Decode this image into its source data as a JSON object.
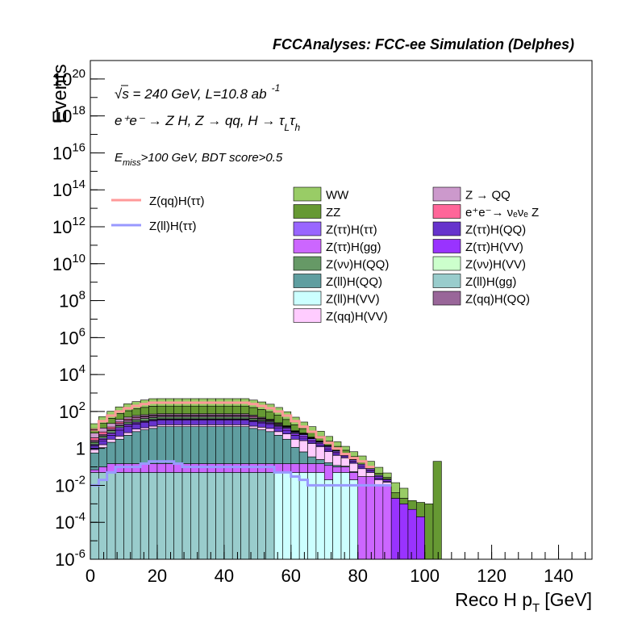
{
  "chart_data": {
    "type": "bar",
    "title": "FCCAnalyses: FCC-ee Simulation (Delphes)",
    "xlabel": "Reco H p",
    "xlabel_sub": "T",
    "xlabel_unit": "[GeV]",
    "ylabel": "Events",
    "xlim": [
      0,
      150
    ],
    "ylim": [
      1e-06,
      1e+21
    ],
    "yscale": "log",
    "x_ticks": [
      "0",
      "20",
      "40",
      "60",
      "80",
      "100",
      "120",
      "140"
    ],
    "y_ticks": [
      {
        "base": "10",
        "exp": "-6"
      },
      {
        "base": "10",
        "exp": "-4"
      },
      {
        "base": "10",
        "exp": "-2"
      },
      {
        "base": "1",
        "exp": ""
      },
      {
        "base": "10",
        "exp": "2"
      },
      {
        "base": "10",
        "exp": "4"
      },
      {
        "base": "10",
        "exp": "6"
      },
      {
        "base": "10",
        "exp": "8"
      },
      {
        "base": "10",
        "exp": "10"
      },
      {
        "base": "10",
        "exp": "12"
      },
      {
        "base": "10",
        "exp": "14"
      },
      {
        "base": "10",
        "exp": "16"
      },
      {
        "base": "10",
        "exp": "18"
      },
      {
        "base": "10",
        "exp": "20"
      }
    ],
    "annotations": {
      "sqrt_s": "√s = 240 GeV, L=10.8 ab",
      "sqrt_s_exp": "-1",
      "process": "e⁺e⁻ → Z H, Z → qq, H → τ",
      "process_sub1": "L",
      "process_tau": "τ",
      "process_sub2": "h",
      "cut": "E",
      "cut_sub": "miss",
      "cut_rest": ">100 GeV, BDT score>0.5"
    },
    "stack_order": [
      "Z(ll)H(gg)",
      "Z(ll)H(VV)",
      "Z(ττ)H(gg)",
      "Z(ll)H(QQ)",
      "Z(qq)H(VV)",
      "Z(ττ)H(QQ)",
      "Z(ττ)H(VV)",
      "Z(ττ)H(ττ)",
      "Z(νν)H(QQ)",
      "Z(νν)H(VV)",
      "Z(qq)H(QQ)",
      "e⁺e⁻→ νₑνₑ Z",
      "Z → QQ",
      "ZZ",
      "WW"
    ],
    "stack_series": [
      {
        "name": "Z(ll)H(gg)",
        "color": "#99cccc",
        "start": 0,
        "end": 55,
        "values": [
          0.05,
          0.05,
          0.05,
          0.05,
          0.05,
          0.05,
          0.05,
          0.05,
          0.05,
          0.05,
          0.05,
          0.05,
          0.05,
          0.05,
          0.05,
          0.05,
          0.05,
          0.05,
          0.05,
          0.05,
          0.05,
          0.05
        ]
      },
      {
        "name": "Z(ll)H(VV)",
        "color": "#ccffff",
        "start": 55,
        "end": 80,
        "values": [
          0.05,
          0.05,
          0.05,
          0.05,
          0.05,
          0.05,
          0.02,
          0.05,
          0.05,
          0.02
        ]
      },
      {
        "name": "Z(ττ)H(gg)",
        "color": "#cc66ff",
        "start": 0,
        "end": 90,
        "values": [
          0.02,
          0.05,
          0.1,
          0.1,
          0.1,
          0.1,
          0.1,
          0.1,
          0.1,
          0.1,
          0.1,
          0.1,
          0.1,
          0.1,
          0.1,
          0.1,
          0.1,
          0.1,
          0.1,
          0.1,
          0.1,
          0.1,
          0.1,
          0.1,
          0.1,
          0.1,
          0.1,
          0.1,
          0.1,
          0.05,
          0.05,
          0.03,
          0.03,
          0.03,
          0.01,
          0.01
        ]
      },
      {
        "name": "Z(ll)H(QQ)",
        "color": "#5f9ea0",
        "start": 0,
        "end": 80,
        "values": [
          0.5,
          1,
          2,
          3,
          5,
          8,
          10,
          12,
          15,
          15,
          15,
          15,
          15,
          15,
          15,
          15,
          15,
          15,
          15,
          12,
          10,
          8,
          5,
          3,
          1,
          0.5,
          0.2,
          0.1,
          0.05,
          0.02,
          0.01,
          0.005
        ]
      },
      {
        "name": "Z(qq)H(VV)",
        "color": "#ffccff",
        "start": 0,
        "end": 90,
        "values": [
          0.3,
          0.5,
          1,
          1.5,
          2,
          3,
          3,
          4,
          4,
          4,
          4,
          4,
          4,
          4,
          4,
          4,
          4,
          4,
          4,
          4,
          4,
          4,
          3,
          3,
          2,
          2,
          1.5,
          1,
          0.5,
          0.3,
          0.2,
          0.1,
          0.05,
          0.02,
          0.01,
          0.005
        ]
      },
      {
        "name": "Z(ττ)H(QQ)",
        "color": "#6633cc",
        "start": 0,
        "end": 90,
        "values": [
          0.5,
          1,
          2,
          5,
          8,
          10,
          12,
          15,
          15,
          15,
          15,
          15,
          15,
          15,
          15,
          15,
          15,
          15,
          15,
          12,
          10,
          8,
          5,
          3,
          2,
          1,
          0.5,
          0.3,
          0.2,
          0.1,
          0.05,
          0.03,
          0.02,
          0.01,
          0.005,
          0.002
        ]
      },
      {
        "name": "Z(ττ)H(VV)",
        "color": "#9933ff",
        "start": 0,
        "end": 100,
        "values": [
          0.1,
          0.5,
          1,
          2,
          3,
          3,
          3,
          3,
          3,
          3,
          3,
          3,
          3,
          3,
          3,
          3,
          3,
          3,
          3,
          3,
          3,
          3,
          2,
          2,
          1,
          1,
          0.5,
          0.3,
          0.2,
          0.1,
          0.05,
          0.03,
          0.02,
          0.01,
          0.005,
          0.003,
          0.002,
          0.001,
          0.0005,
          0.0002
        ]
      },
      {
        "name": "Z(ττ)H(ττ)",
        "color": "#9966ff",
        "start": 0,
        "end": 90,
        "values": [
          0.2,
          0.5,
          1,
          2,
          3,
          3,
          3,
          3,
          3,
          3,
          3,
          3,
          3,
          3,
          3,
          3,
          3,
          3,
          3,
          3,
          3,
          3,
          2,
          2,
          1,
          1,
          0.5,
          0.3,
          0.2,
          0.1,
          0.05,
          0.03,
          0.02,
          0.01,
          0.005,
          0.002
        ]
      },
      {
        "name": "Z(νν)H(QQ)",
        "color": "#669966",
        "start": 0,
        "end": 80,
        "values": [
          0.5,
          1,
          2,
          3,
          5,
          8,
          10,
          10,
          10,
          10,
          10,
          10,
          10,
          10,
          10,
          10,
          10,
          10,
          10,
          8,
          5,
          3,
          2,
          1,
          0.5,
          0.3,
          0.2,
          0.1,
          0.05,
          0.02,
          0.01,
          0.005
        ]
      },
      {
        "name": "Z(νν)H(VV)",
        "color": "#ccffcc",
        "start": 0,
        "end": 80,
        "values": [
          0.1,
          0.2,
          0.3,
          0.5,
          0.5,
          0.5,
          0.5,
          0.5,
          0.5,
          0.5,
          0.5,
          0.5,
          0.5,
          0.5,
          0.5,
          0.5,
          0.5,
          0.5,
          0.5,
          0.5,
          0.5,
          0.5,
          0.3,
          0.2,
          0.1,
          0.05,
          0.03,
          0.02,
          0.01,
          0.005,
          0.002,
          0.001
        ]
      },
      {
        "name": "Z(qq)H(QQ)",
        "color": "#996699",
        "start": 0,
        "end": 80,
        "values": [
          0.5,
          1,
          2,
          5,
          8,
          10,
          10,
          10,
          10,
          10,
          10,
          10,
          10,
          10,
          10,
          10,
          10,
          10,
          10,
          8,
          5,
          3,
          2,
          1,
          0.5,
          0.3,
          0.2,
          0.1,
          0.05,
          0.02,
          0.01,
          0.005
        ]
      },
      {
        "name": "e⁺e⁻→ νₑνₑ Z",
        "color": "#ff6699",
        "start": 0,
        "end": 80,
        "values": [
          1,
          2,
          3,
          5,
          5,
          5,
          5,
          5,
          5,
          5,
          5,
          5,
          5,
          5,
          5,
          5,
          5,
          5,
          5,
          5,
          3,
          2,
          1,
          0.5,
          0.3,
          0.2,
          0.1,
          0.05,
          0.02,
          0.01,
          0.005,
          0.002
        ]
      },
      {
        "name": "Z → QQ",
        "color": "#cc99cc",
        "start": 0,
        "end": 80,
        "values": [
          3,
          5,
          8,
          10,
          10,
          10,
          10,
          10,
          10,
          10,
          10,
          10,
          10,
          10,
          10,
          10,
          10,
          10,
          10,
          8,
          5,
          3,
          2,
          1,
          0.5,
          0.3,
          0.2,
          0.1,
          0.05,
          0.02,
          0.01,
          0.005
        ]
      },
      {
        "name": "ZZ",
        "color": "#669933",
        "start": 0,
        "end": 105,
        "values": [
          5,
          10,
          20,
          40,
          60,
          80,
          100,
          120,
          120,
          120,
          120,
          120,
          120,
          120,
          120,
          120,
          120,
          120,
          120,
          100,
          80,
          60,
          40,
          20,
          10,
          5,
          3,
          2,
          1,
          0.5,
          0.3,
          0.1,
          0.05,
          0.02,
          0.01,
          0.005,
          0.002,
          0.001,
          0.001,
          0.001,
          0.001,
          0.2
        ]
      },
      {
        "name": "WW",
        "color": "#99cc66",
        "start": 0,
        "end": 95,
        "values": [
          10,
          30,
          60,
          100,
          150,
          200,
          250,
          300,
          300,
          300,
          300,
          300,
          300,
          300,
          300,
          300,
          300,
          300,
          300,
          250,
          200,
          150,
          100,
          60,
          30,
          15,
          8,
          4,
          2,
          1,
          0.5,
          0.3,
          0.2,
          0.1,
          0.05,
          0.02,
          0.01,
          0.005
        ]
      }
    ],
    "line_series": [
      {
        "name": "Z(qq)H(ττ)",
        "color": "#ff9999",
        "values": [
          10,
          30,
          60,
          100,
          150,
          200,
          250,
          300,
          300,
          300,
          300,
          300,
          300,
          300,
          300,
          300,
          300,
          300,
          300,
          250,
          200,
          150,
          100,
          60,
          30,
          15,
          8,
          4,
          2,
          1,
          0.5,
          0.3,
          0.2,
          0.1
        ]
      },
      {
        "name": "Z(ll)H(ττ)",
        "color": "#9999ff",
        "values": [
          0.01,
          0.02,
          0.05,
          0.1,
          0.1,
          0.1,
          0.15,
          0.2,
          0.2,
          0.2,
          0.15,
          0.1,
          0.1,
          0.1,
          0.1,
          0.1,
          0.1,
          0.1,
          0.1,
          0.1,
          0.1,
          0.1,
          0.05,
          0.05,
          0.03,
          0.02,
          0.01,
          0.01,
          0.01,
          0.01,
          0.01,
          0.01,
          0.01,
          0.01,
          0.01,
          0.01
        ]
      }
    ],
    "legend_lines": [
      {
        "label": "Z(qq)H(ττ)",
        "color": "#ff9999"
      },
      {
        "label": "Z(ll)H(ττ)",
        "color": "#9999ff"
      }
    ],
    "legend_col1": [
      {
        "label": "WW",
        "color": "#99cc66"
      },
      {
        "label": "ZZ",
        "color": "#669933"
      },
      {
        "label": "Z(ττ)H(ττ)",
        "color": "#9966ff"
      },
      {
        "label": "Z(ττ)H(gg)",
        "color": "#cc66ff"
      },
      {
        "label": "Z(νν)H(QQ)",
        "color": "#669966"
      },
      {
        "label": "Z(ll)H(QQ)",
        "color": "#5f9ea0"
      },
      {
        "label": "Z(ll)H(VV)",
        "color": "#ccffff"
      },
      {
        "label": "Z(qq)H(VV)",
        "color": "#ffccff"
      }
    ],
    "legend_col2": [
      {
        "label": "Z → QQ",
        "color": "#cc99cc"
      },
      {
        "label": "e⁺e⁻→ νₑνₑ Z",
        "color": "#ff6699"
      },
      {
        "label": "Z(ττ)H(QQ)",
        "color": "#6633cc"
      },
      {
        "label": "Z(ττ)H(VV)",
        "color": "#9933ff"
      },
      {
        "label": "Z(νν)H(VV)",
        "color": "#ccffcc"
      },
      {
        "label": "Z(ll)H(gg)",
        "color": "#99cccc"
      },
      {
        "label": "Z(qq)H(QQ)",
        "color": "#996699"
      }
    ],
    "grid": false,
    "legend_position": "top-right"
  }
}
